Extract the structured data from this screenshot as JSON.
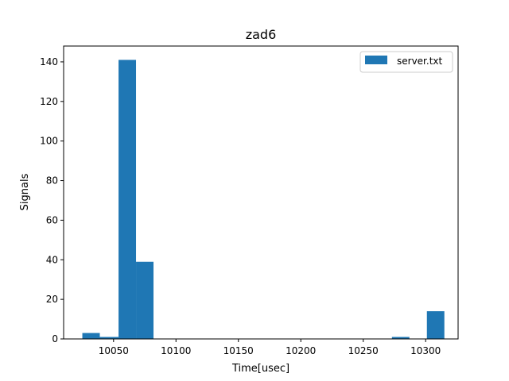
{
  "chart_data": {
    "type": "bar",
    "title": "zad6",
    "xlabel": "Time[usec]",
    "ylabel": "Signals",
    "xlim": [
      10010,
      10326
    ],
    "ylim": [
      0,
      148
    ],
    "xticks": [
      10050,
      10100,
      10150,
      10200,
      10250,
      10300
    ],
    "yticks": [
      0,
      20,
      40,
      60,
      80,
      100,
      120,
      140
    ],
    "grid": false,
    "legend_position": "top-right",
    "series": [
      {
        "name": "server.txt",
        "color": "#1f77b4",
        "bins": [
          {
            "x0": 10025,
            "x1": 10039,
            "value": 3
          },
          {
            "x0": 10039,
            "x1": 10054,
            "value": 1
          },
          {
            "x0": 10054,
            "x1": 10068,
            "value": 141
          },
          {
            "x0": 10068,
            "x1": 10082,
            "value": 39
          },
          {
            "x0": 10273,
            "x1": 10287,
            "value": 1
          },
          {
            "x0": 10301,
            "x1": 10315,
            "value": 14
          }
        ]
      }
    ]
  }
}
